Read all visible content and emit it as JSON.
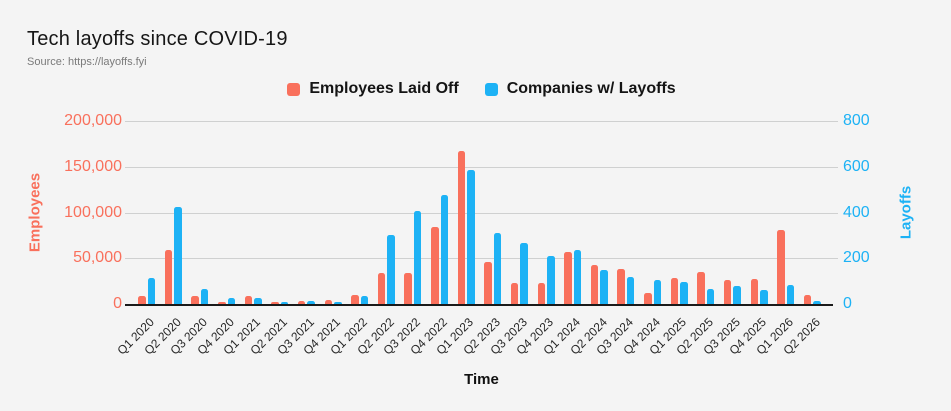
{
  "header": {
    "title": "Tech layoffs since COVID-19",
    "source": "Source: https://layoffs.fyi"
  },
  "legend": {
    "items": [
      {
        "label": "Employees Laid Off",
        "color": "#F9705C"
      },
      {
        "label": "Companies w/ Layoffs",
        "color": "#1DB2F5"
      }
    ]
  },
  "axes": {
    "left": {
      "title": "Employees",
      "color": "#F9705C",
      "max": 200000,
      "ticks": [
        "0",
        "50,000",
        "100,000",
        "150,000",
        "200,000"
      ]
    },
    "right": {
      "title": "Layoffs",
      "color": "#1DB2F5",
      "max": 800,
      "ticks": [
        "0",
        "200",
        "400",
        "600",
        "800"
      ]
    },
    "x": {
      "title": "Time"
    }
  },
  "chart_data": {
    "type": "bar",
    "title": "Tech layoffs since COVID-19",
    "source_text": "Source: https://layoffs.fyi",
    "categories": [
      "Q1 2020",
      "Q2 2020",
      "Q3 2020",
      "Q4 2020",
      "Q1 2021",
      "Q2 2021",
      "Q3 2021",
      "Q4 2021",
      "Q1 2022",
      "Q2 2022",
      "Q3 2022",
      "Q4 2022",
      "Q1 2023",
      "Q2 2023",
      "Q3 2023",
      "Q4 2023",
      "Q1 2024",
      "Q2 2024",
      "Q3 2024",
      "Q4 2024",
      "Q1 2025",
      "Q2 2025",
      "Q3 2025",
      "Q4 2025",
      "Q1 2026",
      "Q2 2026"
    ],
    "series": [
      {
        "name": "Employees Laid Off",
        "axis": "left",
        "color": "#F9705C",
        "values": [
          9300,
          59500,
          8800,
          2000,
          8500,
          2000,
          3300,
          3900,
          9800,
          34000,
          34000,
          84000,
          167600,
          46000,
          23000,
          23500,
          56500,
          42500,
          38000,
          12500,
          28500,
          35500,
          26500,
          27500,
          80500,
          9500
        ]
      },
      {
        "name": "Companies w/ Layoffs",
        "axis": "right",
        "color": "#1DB2F5",
        "values": [
          115,
          425,
          64,
          26,
          28,
          10,
          15,
          8,
          35,
          300,
          408,
          475,
          585,
          310,
          265,
          210,
          235,
          150,
          120,
          103,
          96,
          66,
          77,
          60,
          83,
          15
        ]
      }
    ],
    "xlabel": "Time",
    "ylabel_left": "Employees",
    "ylabel_right": "Layoffs",
    "left_ylim": [
      0,
      200000
    ],
    "right_ylim": [
      0,
      800
    ],
    "grid": true,
    "legend_position": "top"
  }
}
